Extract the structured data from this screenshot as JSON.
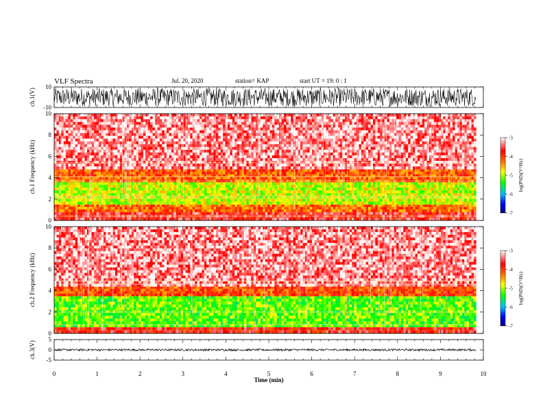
{
  "header": {
    "title": "VLF Spectra",
    "date": "Jul. 20, 2020",
    "station": "station= KAP",
    "start": "start UT = 19: 0 : 1"
  },
  "colors": {
    "spectrogram_ramp": [
      "#000080",
      "#0000ff",
      "#00bfff",
      "#00ff00",
      "#ffff00",
      "#ff8c00",
      "#ff0000",
      "#ffffff"
    ],
    "trace": "#000000"
  },
  "chart_data": [
    {
      "type": "line",
      "panel": "ch1-waveform",
      "ylabel": "ch.1(V)",
      "ylim": [
        -10,
        10
      ],
      "yticks": [
        "10",
        "-10"
      ],
      "xlim": [
        0,
        10
      ],
      "series": [
        {
          "x_extent": [
            0,
            9.83
          ],
          "typical_range": [
            -9,
            9
          ]
        }
      ]
    },
    {
      "type": "heatmap",
      "panel": "ch1-spectrogram",
      "ylabel": "ch.1 Frequency (kHz)",
      "ylim": [
        0,
        10
      ],
      "yticks": [
        "0",
        "2",
        "4",
        "6",
        "8",
        "10"
      ],
      "xlim": [
        0,
        10
      ],
      "x_extent": [
        0,
        9.83
      ],
      "bands": [
        {
          "freq_khz": [
            0,
            0.8
          ],
          "log_psd": -3.6
        },
        {
          "freq_khz": [
            0.8,
            1.5
          ],
          "log_psd": -4.2
        },
        {
          "freq_khz": [
            1.5,
            3.6
          ],
          "log_psd": -4.9
        },
        {
          "freq_khz": [
            3.6,
            4.8
          ],
          "log_psd": -4.1
        },
        {
          "freq_khz": [
            4.8,
            10
          ],
          "log_psd": -3.3
        }
      ],
      "lines_khz": [
        0.4,
        2.1,
        2.3,
        3.7,
        4.1,
        5.4
      ],
      "colorbar": {
        "label": "log(PSD)(V²/Hz)",
        "range": [
          -7,
          -3
        ],
        "ticks": [
          "-3",
          "-4",
          "-5",
          "-6",
          "-7"
        ]
      }
    },
    {
      "type": "heatmap",
      "panel": "ch2-spectrogram",
      "ylabel": "ch.2 Frequency (kHz)",
      "ylim": [
        0,
        10
      ],
      "yticks": [
        "0",
        "2",
        "4",
        "6",
        "8",
        "10"
      ],
      "xlim": [
        0,
        10
      ],
      "x_extent": [
        0,
        9.83
      ],
      "bands": [
        {
          "freq_khz": [
            0,
            0.6
          ],
          "log_psd": -3.7
        },
        {
          "freq_khz": [
            0.6,
            3.5
          ],
          "log_psd": -5.2
        },
        {
          "freq_khz": [
            3.5,
            4.4
          ],
          "log_psd": -4.0
        },
        {
          "freq_khz": [
            4.4,
            10
          ],
          "log_psd": -3.3
        }
      ],
      "lines_khz": [
        0.8,
        2.0,
        4.6,
        4.9
      ],
      "colorbar": {
        "label": "log(PSD)(V²/Hz)",
        "range": [
          -7,
          -3
        ],
        "ticks": [
          "-3",
          "-4",
          "-5",
          "-6",
          "-7"
        ]
      }
    },
    {
      "type": "line",
      "panel": "ch3-waveform",
      "ylabel": "ch.3(V)",
      "ylim": [
        -5,
        5
      ],
      "yticks": [
        "5",
        "0",
        "-5"
      ],
      "xlim": [
        0,
        10
      ],
      "xticks": [
        "0",
        "1",
        "2",
        "3",
        "4",
        "5",
        "6",
        "7",
        "8",
        "9",
        "10"
      ],
      "xlabel": "Time (min)",
      "series": [
        {
          "x_extent": [
            0,
            9.83
          ],
          "typical_range": [
            -0.5,
            0.5
          ]
        }
      ]
    }
  ]
}
